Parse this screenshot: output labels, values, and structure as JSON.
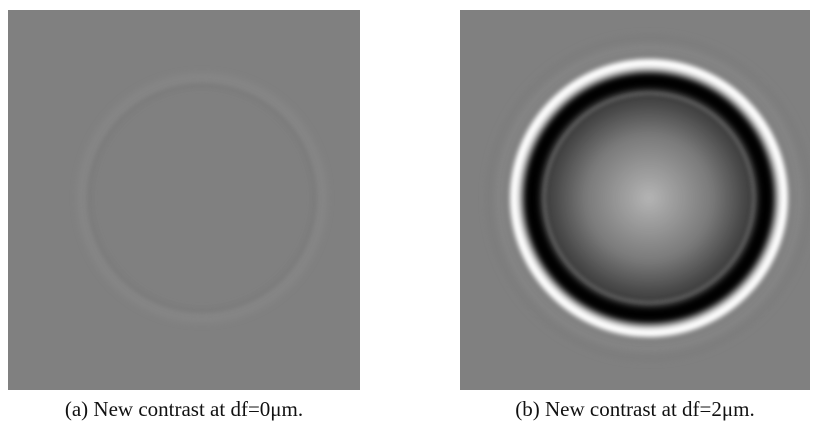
{
  "figure": {
    "panels": [
      {
        "caption": "(a) New contrast at df=0μm."
      },
      {
        "caption": "(b) New contrast at df=2μm."
      }
    ]
  }
}
